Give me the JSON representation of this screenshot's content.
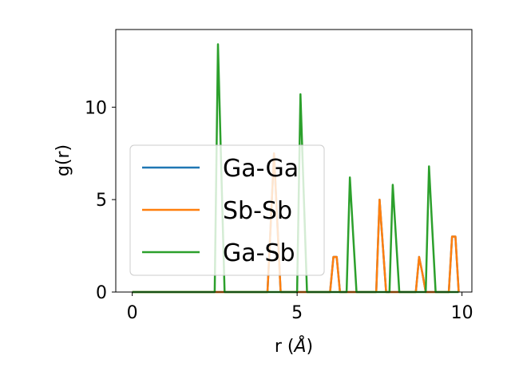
{
  "chart_data": {
    "type": "line",
    "title": "",
    "xlabel": "r (",
    "xlabel_symbol": "Å",
    "xlabel_close": ")",
    "ylabel": "g(r)",
    "xlim": [
      -0.5,
      10.3
    ],
    "ylim": [
      0,
      14.2
    ],
    "xticks": [
      0,
      5,
      10
    ],
    "yticks": [
      0,
      5,
      10
    ],
    "xtick_labels": [
      "0",
      "5",
      "10"
    ],
    "ytick_labels": [
      "0",
      "5",
      "10"
    ],
    "grid": false,
    "legend": "center-left",
    "series": [
      {
        "name": "Ga-Ga",
        "color": "#1f77b4",
        "x": [
          0,
          4.1,
          4.2,
          4.3,
          4.4,
          4.5,
          6.0,
          6.1,
          6.2,
          6.3,
          7.4,
          7.5,
          7.6,
          7.7,
          8.6,
          8.7,
          8.8,
          8.9,
          9.6,
          9.7,
          9.8,
          9.9
        ],
        "y": [
          0,
          0,
          3.7,
          7.5,
          3.7,
          0,
          0,
          1.9,
          1.9,
          0,
          0,
          5.0,
          2.5,
          0,
          0,
          1.9,
          1.0,
          0,
          0,
          3.0,
          3.0,
          0
        ]
      },
      {
        "name": "Sb-Sb",
        "color": "#ff7f0e",
        "x": [
          0,
          4.1,
          4.2,
          4.3,
          4.4,
          4.5,
          6.0,
          6.1,
          6.2,
          6.3,
          7.4,
          7.5,
          7.6,
          7.7,
          8.6,
          8.7,
          8.8,
          8.9,
          9.6,
          9.7,
          9.8,
          9.9
        ],
        "y": [
          0,
          0,
          3.7,
          7.5,
          3.7,
          0,
          0,
          1.9,
          1.9,
          0,
          0,
          5.0,
          2.5,
          0,
          0,
          1.9,
          1.0,
          0,
          0,
          3.0,
          3.0,
          0
        ]
      },
      {
        "name": "Ga-Sb",
        "color": "#2ca02c",
        "x": [
          0,
          2.5,
          2.6,
          2.7,
          2.8,
          5.0,
          5.1,
          5.2,
          5.3,
          6.5,
          6.6,
          6.7,
          6.8,
          7.8,
          7.9,
          8.0,
          8.1,
          8.9,
          9.0,
          9.1,
          9.2,
          9.9
        ],
        "y": [
          0,
          0,
          13.4,
          6.7,
          0,
          0,
          10.7,
          5.3,
          0,
          0,
          6.2,
          3.1,
          0,
          0,
          5.8,
          2.9,
          0,
          0,
          6.8,
          3.4,
          0,
          0
        ]
      }
    ]
  }
}
